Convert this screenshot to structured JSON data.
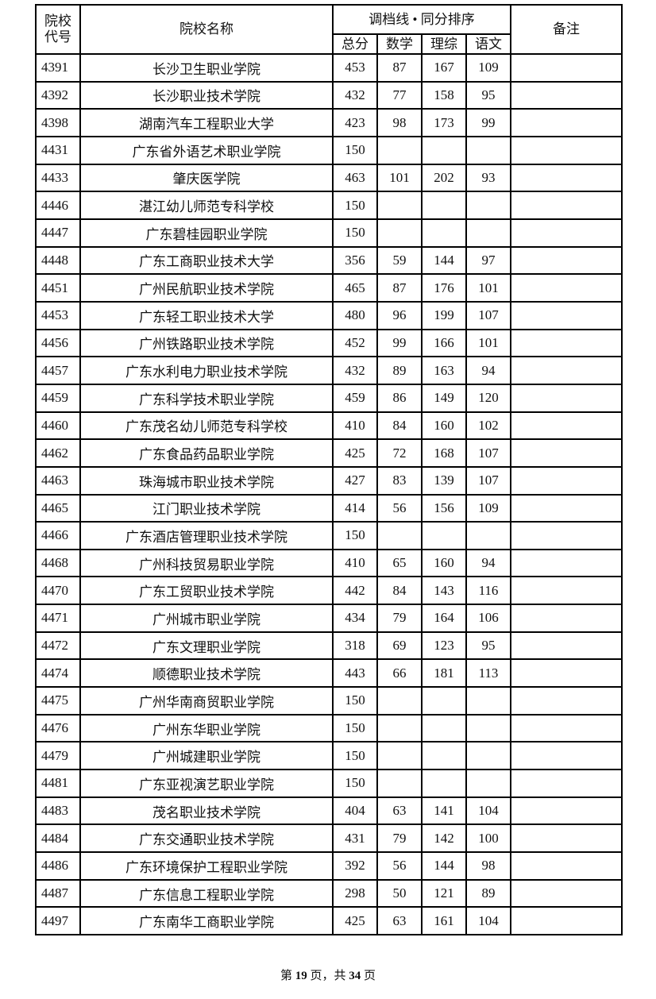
{
  "header": {
    "code": "院校代号",
    "code_line1": "院校",
    "code_line2": "代号",
    "name": "院校名称",
    "group": "调档线 • 同分排序",
    "total": "总分",
    "math": "数学",
    "science": "理综",
    "chinese": "语文",
    "remark": "备注"
  },
  "rows": [
    [
      "4391",
      "长沙卫生职业学院",
      "453",
      "87",
      "167",
      "109"
    ],
    [
      "4392",
      "长沙职业技术学院",
      "432",
      "77",
      "158",
      "95"
    ],
    [
      "4398",
      "湖南汽车工程职业大学",
      "423",
      "98",
      "173",
      "99"
    ],
    [
      "4431",
      "广东省外语艺术职业学院",
      "150",
      "",
      "",
      ""
    ],
    [
      "4433",
      "肇庆医学院",
      "463",
      "101",
      "202",
      "93"
    ],
    [
      "4446",
      "湛江幼儿师范专科学校",
      "150",
      "",
      "",
      ""
    ],
    [
      "4447",
      "广东碧桂园职业学院",
      "150",
      "",
      "",
      ""
    ],
    [
      "4448",
      "广东工商职业技术大学",
      "356",
      "59",
      "144",
      "97"
    ],
    [
      "4451",
      "广州民航职业技术学院",
      "465",
      "87",
      "176",
      "101"
    ],
    [
      "4453",
      "广东轻工职业技术大学",
      "480",
      "96",
      "199",
      "107"
    ],
    [
      "4456",
      "广州铁路职业技术学院",
      "452",
      "99",
      "166",
      "101"
    ],
    [
      "4457",
      "广东水利电力职业技术学院",
      "432",
      "89",
      "163",
      "94"
    ],
    [
      "4459",
      "广东科学技术职业学院",
      "459",
      "86",
      "149",
      "120"
    ],
    [
      "4460",
      "广东茂名幼儿师范专科学校",
      "410",
      "84",
      "160",
      "102"
    ],
    [
      "4462",
      "广东食品药品职业学院",
      "425",
      "72",
      "168",
      "107"
    ],
    [
      "4463",
      "珠海城市职业技术学院",
      "427",
      "83",
      "139",
      "107"
    ],
    [
      "4465",
      "江门职业技术学院",
      "414",
      "56",
      "156",
      "109"
    ],
    [
      "4466",
      "广东酒店管理职业技术学院",
      "150",
      "",
      "",
      ""
    ],
    [
      "4468",
      "广州科技贸易职业学院",
      "410",
      "65",
      "160",
      "94"
    ],
    [
      "4470",
      "广东工贸职业技术学院",
      "442",
      "84",
      "143",
      "116"
    ],
    [
      "4471",
      "广州城市职业学院",
      "434",
      "79",
      "164",
      "106"
    ],
    [
      "4472",
      "广东文理职业学院",
      "318",
      "69",
      "123",
      "95"
    ],
    [
      "4474",
      "顺德职业技术学院",
      "443",
      "66",
      "181",
      "113"
    ],
    [
      "4475",
      "广州华南商贸职业学院",
      "150",
      "",
      "",
      ""
    ],
    [
      "4476",
      "广州东华职业学院",
      "150",
      "",
      "",
      ""
    ],
    [
      "4479",
      "广州城建职业学院",
      "150",
      "",
      "",
      ""
    ],
    [
      "4481",
      "广东亚视演艺职业学院",
      "150",
      "",
      "",
      ""
    ],
    [
      "4483",
      "茂名职业技术学院",
      "404",
      "63",
      "141",
      "104"
    ],
    [
      "4484",
      "广东交通职业技术学院",
      "431",
      "79",
      "142",
      "100"
    ],
    [
      "4486",
      "广东环境保护工程职业学院",
      "392",
      "56",
      "144",
      "98"
    ],
    [
      "4487",
      "广东信息工程职业学院",
      "298",
      "50",
      "121",
      "89"
    ],
    [
      "4497",
      "广东南华工商职业学院",
      "425",
      "63",
      "161",
      "104"
    ]
  ],
  "footer": {
    "prefix": "第 ",
    "page": "19",
    "middle": " 页，共 ",
    "total": "34",
    "suffix": " 页"
  }
}
